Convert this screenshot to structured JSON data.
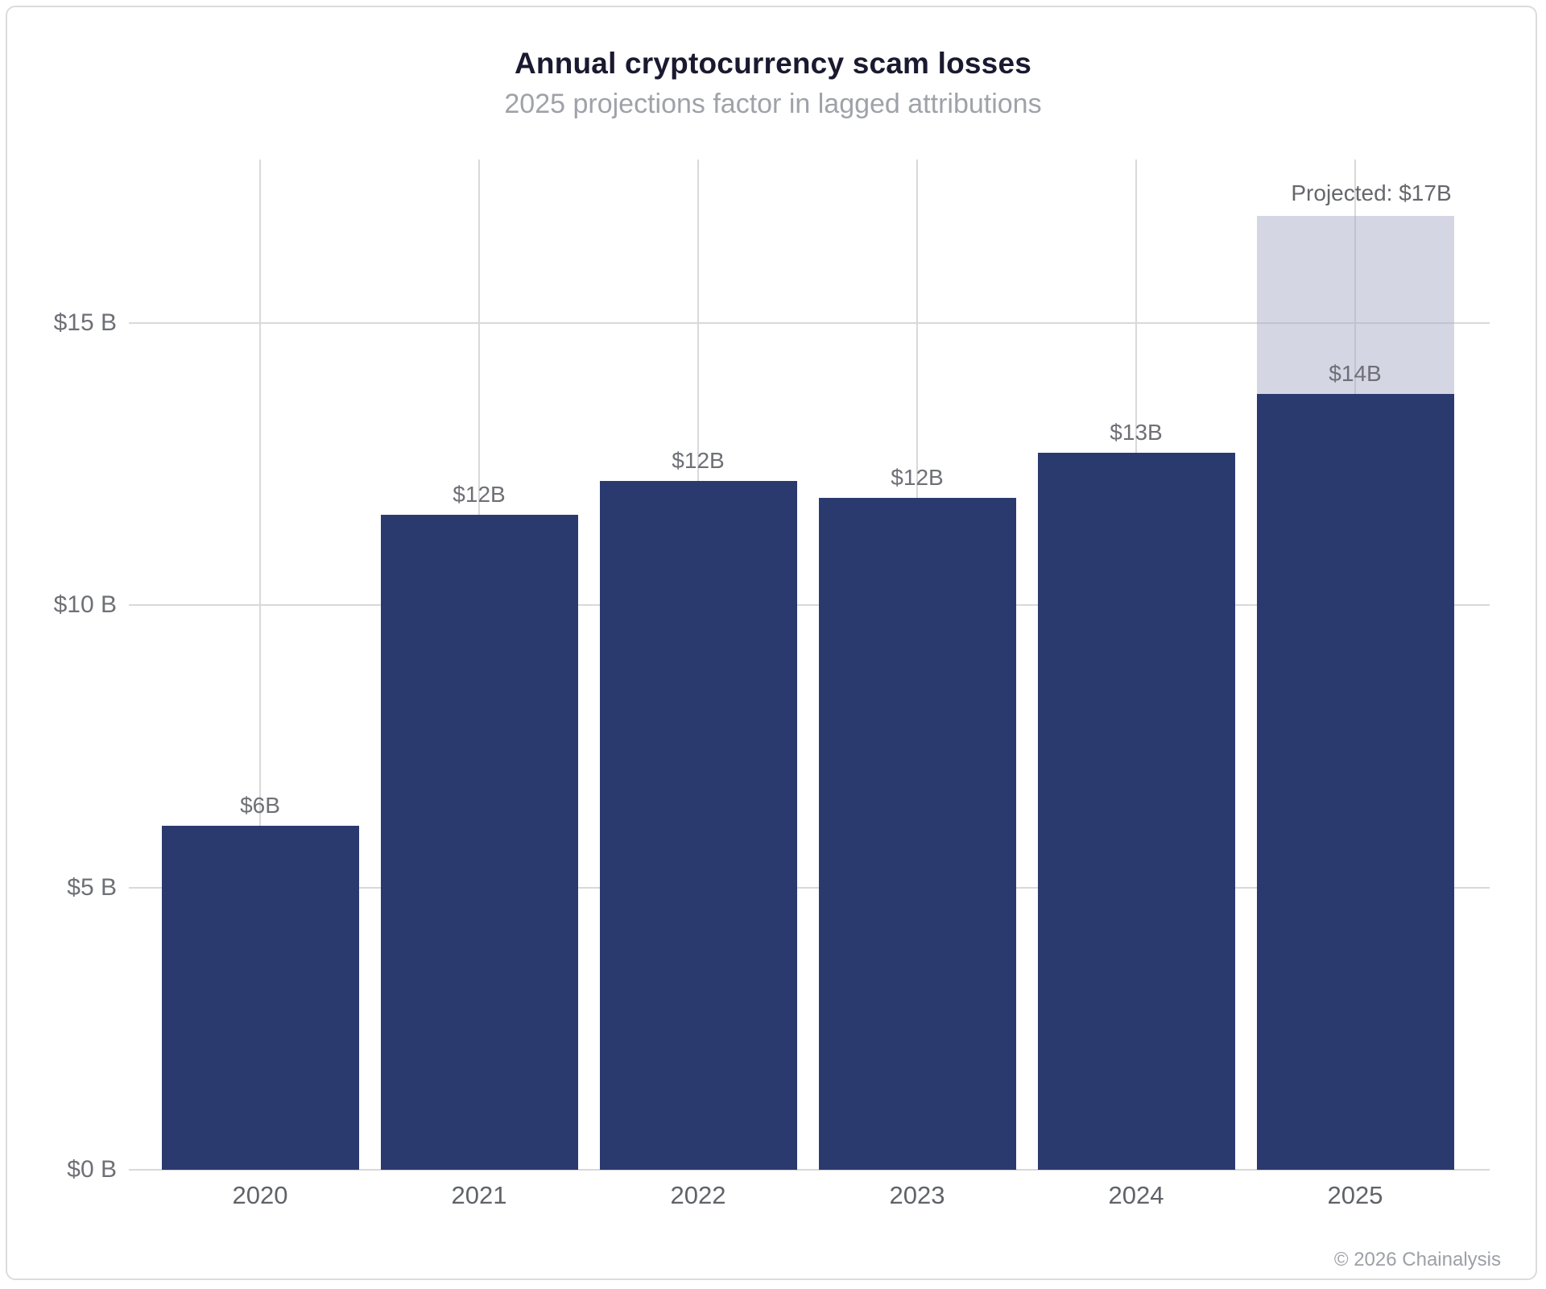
{
  "header": {
    "title": "Annual cryptocurrency scam losses",
    "subtitle": "2025 projections factor in lagged attributions"
  },
  "footer": {
    "copyright": "© 2026 Chainalysis"
  },
  "chart_data": {
    "type": "bar",
    "title": "Annual cryptocurrency scam losses",
    "subtitle": "2025 projections factor in lagged attributions",
    "categories": [
      "2020",
      "2021",
      "2022",
      "2023",
      "2024",
      "2025"
    ],
    "series": [
      {
        "name": "actual-losses",
        "values": [
          6.1,
          11.6,
          12.2,
          11.9,
          12.7,
          13.75
        ]
      },
      {
        "name": "projected-additional-lagged-attributions",
        "values": [
          0,
          0,
          0,
          0,
          0,
          3.15
        ]
      }
    ],
    "bar_value_labels": [
      "$6B",
      "$12B",
      "$12B",
      "$12B",
      "$13B",
      "$14B"
    ],
    "projection_annotation": {
      "category": "2025",
      "label": "Projected: $17B",
      "projected_total": 16.9
    },
    "yticks": [
      {
        "value": 0,
        "label": "$0 B"
      },
      {
        "value": 5,
        "label": "$5 B"
      },
      {
        "value": 10,
        "label": "$10 B"
      },
      {
        "value": 15,
        "label": "$15 B"
      }
    ],
    "ylim": [
      0,
      17.9
    ],
    "xlabel": "",
    "ylabel": "",
    "grid": true,
    "legend": "none",
    "colors": {
      "bar": "#2b3a6e",
      "projection_fill": "rgba(171,173,199,0.5)",
      "gridline": "#d9d9d9",
      "title": "#191930",
      "subtitle": "#a0a2aa",
      "tick_label": "#6e7076",
      "bar_label": "#6e7076",
      "x_tick_label": "#606368",
      "copyright": "#9da0a6"
    }
  }
}
